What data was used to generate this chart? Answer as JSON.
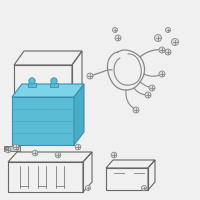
{
  "bg_color": "#f0f0f0",
  "battery_fill": "#5bbcd6",
  "battery_top_fill": "#7dd4e8",
  "battery_right_fill": "#4aadc8",
  "battery_stroke": "#3a8fb5",
  "outline_color": "#999999",
  "dark_outline": "#666666",
  "wire_color": "#888888",
  "screw_fill": "#dddddd",
  "screw_color": "#888888",
  "figsize": [
    2.0,
    2.0
  ],
  "dpi": 100
}
